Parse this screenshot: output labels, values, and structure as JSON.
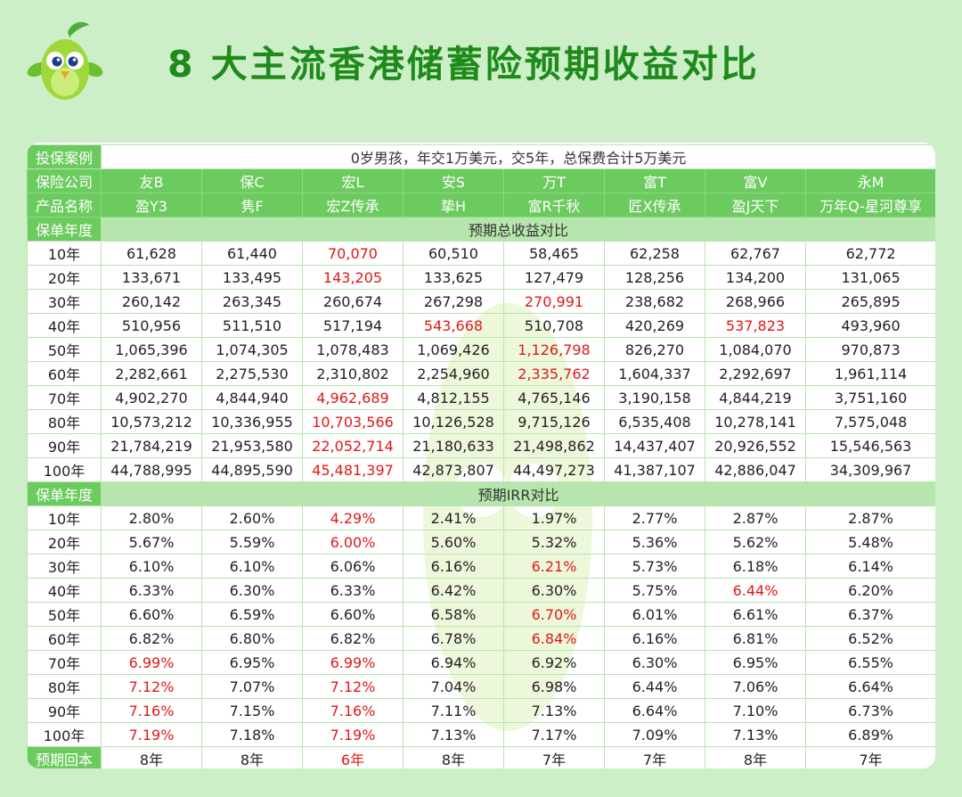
{
  "title": "8 大主流香港储蓄险预期收益对比",
  "case": {
    "label": "投保案例",
    "text": "0岁男孩，年交1万美元，交5年，总保费合计5万美元"
  },
  "companies": {
    "label": "保险公司",
    "items": [
      "友B",
      "保C",
      "宏L",
      "安S",
      "万T",
      "富T",
      "富V",
      "永M"
    ]
  },
  "products": {
    "label": "产品名称",
    "items": [
      "盈Y3",
      "隽F",
      "宏Z传承",
      "挚H",
      "富R千秋",
      "匠X传承",
      "盈J天下",
      "万年Q-星河尊享"
    ]
  },
  "section1": {
    "year_label": "保单年度",
    "title": "预期总收益对比"
  },
  "section2": {
    "year_label": "保单年度",
    "title": "预期IRR对比"
  },
  "years": [
    "10年",
    "20年",
    "30年",
    "40年",
    "50年",
    "60年",
    "70年",
    "80年",
    "90年",
    "100年"
  ],
  "total_returns": [
    [
      "61,628",
      "61,440",
      "70,070",
      "60,510",
      "58,465",
      "62,258",
      "62,767",
      "62,772"
    ],
    [
      "133,671",
      "133,495",
      "143,205",
      "133,625",
      "127,479",
      "128,256",
      "134,200",
      "131,065"
    ],
    [
      "260,142",
      "263,345",
      "260,674",
      "267,298",
      "270,991",
      "238,682",
      "268,966",
      "265,895"
    ],
    [
      "510,956",
      "511,510",
      "517,194",
      "543,668",
      "510,708",
      "420,269",
      "537,823",
      "493,960"
    ],
    [
      "1,065,396",
      "1,074,305",
      "1,078,483",
      "1,069,426",
      "1,126,798",
      "826,270",
      "1,084,070",
      "970,873"
    ],
    [
      "2,282,661",
      "2,275,530",
      "2,310,802",
      "2,254,960",
      "2,335,762",
      "1,604,337",
      "2,292,697",
      "1,961,114"
    ],
    [
      "4,902,270",
      "4,844,940",
      "4,962,689",
      "4,812,155",
      "4,765,146",
      "3,190,158",
      "4,844,219",
      "3,751,160"
    ],
    [
      "10,573,212",
      "10,336,955",
      "10,703,566",
      "10,126,528",
      "9,715,126",
      "6,535,408",
      "10,278,141",
      "7,575,048"
    ],
    [
      "21,784,219",
      "21,953,580",
      "22,052,714",
      "21,180,633",
      "21,498,862",
      "14,437,407",
      "20,926,552",
      "15,546,563"
    ],
    [
      "44,788,995",
      "44,895,590",
      "45,481,397",
      "42,873,807",
      "44,497,273",
      "41,387,107",
      "42,886,047",
      "34,309,967"
    ]
  ],
  "total_highlights": [
    [
      0,
      2
    ],
    [
      1,
      2
    ],
    [
      2,
      4
    ],
    [
      3,
      3
    ],
    [
      3,
      6
    ],
    [
      4,
      4
    ],
    [
      5,
      4
    ],
    [
      6,
      2
    ],
    [
      7,
      2
    ],
    [
      8,
      2
    ],
    [
      9,
      2
    ]
  ],
  "irr": [
    [
      "2.80%",
      "2.60%",
      "4.29%",
      "2.41%",
      "1.97%",
      "2.77%",
      "2.87%",
      "2.87%"
    ],
    [
      "5.67%",
      "5.59%",
      "6.00%",
      "5.60%",
      "5.32%",
      "5.36%",
      "5.62%",
      "5.48%"
    ],
    [
      "6.10%",
      "6.10%",
      "6.06%",
      "6.16%",
      "6.21%",
      "5.73%",
      "6.18%",
      "6.14%"
    ],
    [
      "6.33%",
      "6.30%",
      "6.33%",
      "6.42%",
      "6.30%",
      "5.75%",
      "6.44%",
      "6.20%"
    ],
    [
      "6.60%",
      "6.59%",
      "6.60%",
      "6.58%",
      "6.70%",
      "6.01%",
      "6.61%",
      "6.37%"
    ],
    [
      "6.82%",
      "6.80%",
      "6.82%",
      "6.78%",
      "6.84%",
      "6.16%",
      "6.81%",
      "6.52%"
    ],
    [
      "6.99%",
      "6.95%",
      "6.99%",
      "6.94%",
      "6.92%",
      "6.30%",
      "6.95%",
      "6.55%"
    ],
    [
      "7.12%",
      "7.07%",
      "7.12%",
      "7.04%",
      "6.98%",
      "6.44%",
      "7.06%",
      "6.64%"
    ],
    [
      "7.16%",
      "7.15%",
      "7.16%",
      "7.11%",
      "7.13%",
      "6.64%",
      "7.10%",
      "6.73%"
    ],
    [
      "7.19%",
      "7.18%",
      "7.19%",
      "7.13%",
      "7.17%",
      "7.09%",
      "7.13%",
      "6.89%"
    ]
  ],
  "irr_highlights": [
    [
      0,
      2
    ],
    [
      1,
      2
    ],
    [
      2,
      4
    ],
    [
      3,
      6
    ],
    [
      4,
      4
    ],
    [
      5,
      4
    ],
    [
      6,
      0
    ],
    [
      6,
      2
    ],
    [
      7,
      0
    ],
    [
      7,
      2
    ],
    [
      8,
      0
    ],
    [
      8,
      2
    ],
    [
      9,
      0
    ],
    [
      9,
      2
    ]
  ],
  "payback": {
    "label": "预期回本",
    "items": [
      "8年",
      "8年",
      "6年",
      "8年",
      "7年",
      "7年",
      "8年",
      "7年"
    ],
    "highlight": [
      2
    ]
  },
  "colors": {
    "background": "#cdefc8",
    "header_green": "#6ccb5f",
    "section_green": "#b6e6ad",
    "title_green": "#1f8a1c",
    "highlight_red": "#e01818"
  },
  "icons": {
    "mascot": "green-bird-mascot-icon"
  }
}
